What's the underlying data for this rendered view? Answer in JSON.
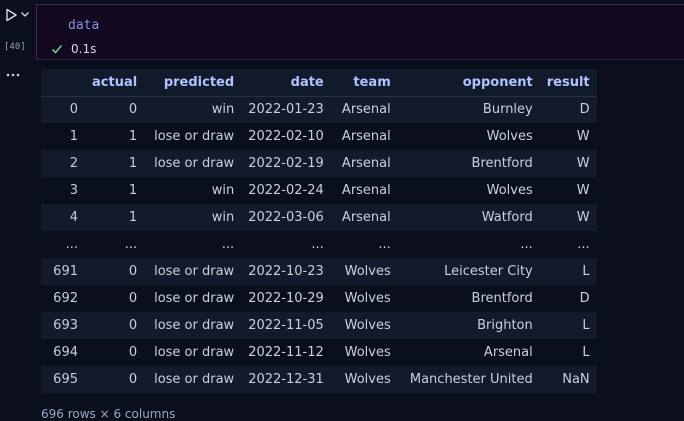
{
  "cell": {
    "code": "data",
    "execution_count": "[40]",
    "status": "0.1s"
  },
  "icons": {
    "run": "play-icon",
    "run_options": "chevron-down-icon",
    "status": "check-icon",
    "output_actions": "more-horizontal-icon"
  },
  "colors": {
    "background": "#0b0f1b",
    "editor_background": "#12091f",
    "code_token": "#7f95e6",
    "check": "#6fd48f",
    "header_text": "#aec3ff"
  },
  "table": {
    "columns": [
      "",
      "actual",
      "predicted",
      "date",
      "team",
      "opponent",
      "result"
    ],
    "rows": [
      [
        "0",
        "0",
        "win",
        "2022-01-23",
        "Arsenal",
        "Burnley",
        "D"
      ],
      [
        "1",
        "1",
        "lose or draw",
        "2022-02-10",
        "Arsenal",
        "Wolves",
        "W"
      ],
      [
        "2",
        "1",
        "lose or draw",
        "2022-02-19",
        "Arsenal",
        "Brentford",
        "W"
      ],
      [
        "3",
        "1",
        "win",
        "2022-02-24",
        "Arsenal",
        "Wolves",
        "W"
      ],
      [
        "4",
        "1",
        "win",
        "2022-03-06",
        "Arsenal",
        "Watford",
        "W"
      ],
      [
        "...",
        "...",
        "...",
        "...",
        "...",
        "...",
        "..."
      ],
      [
        "691",
        "0",
        "lose or draw",
        "2022-10-23",
        "Wolves",
        "Leicester City",
        "L"
      ],
      [
        "692",
        "0",
        "lose or draw",
        "2022-10-29",
        "Wolves",
        "Brentford",
        "D"
      ],
      [
        "693",
        "0",
        "lose or draw",
        "2022-11-05",
        "Wolves",
        "Brighton",
        "L"
      ],
      [
        "694",
        "0",
        "lose or draw",
        "2022-11-12",
        "Wolves",
        "Arsenal",
        "L"
      ],
      [
        "695",
        "0",
        "lose or draw",
        "2022-12-31",
        "Wolves",
        "Manchester United",
        "NaN"
      ]
    ],
    "shape": "696 rows × 6 columns"
  }
}
